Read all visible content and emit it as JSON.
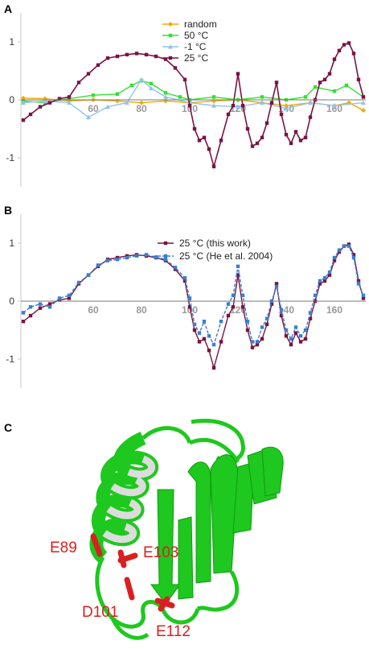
{
  "panels": {
    "a": {
      "label": "A"
    },
    "b": {
      "label": "B"
    },
    "c": {
      "label": "C"
    }
  },
  "chart_data": [
    {
      "type": "line",
      "panel": "A",
      "title": "",
      "xlabel": "",
      "ylabel": "",
      "xlim": [
        30,
        173
      ],
      "ylim": [
        -1.5,
        1.5
      ],
      "x_ticks": [
        60,
        80,
        100,
        120,
        140,
        160
      ],
      "y_ticks": [
        1,
        0,
        -1
      ],
      "legend_position": "top-center",
      "series": [
        {
          "name": "random",
          "color": "#f2a900",
          "marker": "diamond",
          "x": [
            31,
            40,
            50,
            60,
            70,
            80,
            90,
            100,
            110,
            120,
            130,
            140,
            150,
            160,
            166,
            172
          ],
          "y": [
            0.03,
            0.02,
            -0.02,
            0.0,
            -0.02,
            -0.05,
            -0.02,
            -0.05,
            -0.02,
            0.0,
            -0.05,
            -0.1,
            -0.05,
            -0.1,
            -0.05,
            -0.18
          ]
        },
        {
          "name": "50 °C",
          "color": "#33e033",
          "marker": "square",
          "x": [
            31,
            40,
            50,
            60,
            70,
            76,
            80,
            84,
            90,
            96,
            100,
            110,
            120,
            130,
            140,
            148,
            152,
            160,
            165,
            172
          ],
          "y": [
            -0.02,
            -0.05,
            0.02,
            0.08,
            0.1,
            0.25,
            0.33,
            0.28,
            0.12,
            0.05,
            0.0,
            0.05,
            0.0,
            0.05,
            0.0,
            0.05,
            0.22,
            0.15,
            0.25,
            0.05
          ]
        },
        {
          "name": "-1 °C",
          "color": "#8fc3ef",
          "marker": "triangle",
          "x": [
            31,
            40,
            50,
            58,
            66,
            74,
            80,
            84,
            90,
            100,
            110,
            120,
            130,
            140,
            150,
            160,
            172
          ],
          "y": [
            -0.05,
            -0.02,
            -0.05,
            -0.3,
            -0.12,
            -0.05,
            0.35,
            0.2,
            0.05,
            -0.05,
            -0.1,
            -0.12,
            -0.05,
            -0.15,
            -0.05,
            -0.1,
            -0.05
          ]
        },
        {
          "name": "25 °C",
          "color": "#7a1342",
          "marker": "square",
          "x": [
            31,
            34,
            38,
            42,
            46,
            50,
            54,
            58,
            62,
            66,
            70,
            74,
            78,
            82,
            86,
            90,
            94,
            98,
            100,
            102,
            104,
            106,
            108,
            110,
            113,
            116,
            118,
            120,
            122,
            124,
            126,
            128,
            130,
            132,
            134,
            136,
            138,
            140,
            142,
            144,
            146,
            148,
            150,
            152,
            154,
            156,
            158,
            160,
            162,
            164,
            166,
            168,
            170,
            172
          ],
          "y": [
            -0.35,
            -0.25,
            -0.12,
            -0.05,
            0.02,
            0.05,
            0.3,
            0.45,
            0.6,
            0.72,
            0.75,
            0.78,
            0.8,
            0.78,
            0.75,
            0.7,
            0.55,
            0.35,
            -0.1,
            -0.5,
            -0.7,
            -0.65,
            -0.85,
            -1.15,
            -0.7,
            -0.25,
            -0.1,
            0.45,
            -0.1,
            -0.5,
            -0.8,
            -0.75,
            -0.65,
            -0.4,
            -0.05,
            0.3,
            -0.25,
            -0.6,
            -0.75,
            -0.55,
            -0.7,
            -0.65,
            -0.3,
            0.0,
            0.3,
            0.35,
            0.45,
            0.7,
            0.85,
            0.95,
            0.98,
            0.8,
            0.35,
            0.05
          ]
        }
      ]
    },
    {
      "type": "line",
      "panel": "B",
      "title": "",
      "xlabel": "",
      "ylabel": "",
      "xlim": [
        30,
        173
      ],
      "ylim": [
        -1.5,
        1.5
      ],
      "x_ticks": [
        60,
        80,
        100,
        120,
        140,
        160
      ],
      "y_ticks": [
        1,
        0,
        -1
      ],
      "legend_position": "top-center",
      "series": [
        {
          "name": "25 °C (this work)",
          "color": "#7a1342",
          "marker": "square",
          "x": [
            31,
            34,
            38,
            42,
            46,
            50,
            54,
            58,
            62,
            66,
            70,
            74,
            78,
            82,
            86,
            90,
            94,
            98,
            100,
            102,
            104,
            106,
            108,
            110,
            113,
            116,
            118,
            120,
            122,
            124,
            126,
            128,
            130,
            132,
            134,
            136,
            138,
            140,
            142,
            144,
            146,
            148,
            150,
            152,
            154,
            156,
            158,
            160,
            162,
            164,
            166,
            168,
            170,
            172
          ],
          "y": [
            -0.35,
            -0.25,
            -0.12,
            -0.05,
            0.02,
            0.05,
            0.3,
            0.45,
            0.6,
            0.72,
            0.75,
            0.78,
            0.8,
            0.78,
            0.75,
            0.7,
            0.55,
            0.35,
            -0.1,
            -0.5,
            -0.7,
            -0.65,
            -0.85,
            -1.15,
            -0.7,
            -0.25,
            -0.1,
            0.45,
            -0.1,
            -0.5,
            -0.8,
            -0.75,
            -0.65,
            -0.4,
            -0.05,
            0.3,
            -0.25,
            -0.6,
            -0.75,
            -0.55,
            -0.7,
            -0.65,
            -0.3,
            0.0,
            0.3,
            0.35,
            0.45,
            0.7,
            0.85,
            0.95,
            0.98,
            0.8,
            0.35,
            0.05
          ]
        },
        {
          "name": "25 °C (He et al. 2004)",
          "color": "#3a7fd0",
          "marker": "square",
          "x": [
            31,
            34,
            38,
            42,
            46,
            50,
            54,
            58,
            62,
            66,
            70,
            74,
            78,
            82,
            86,
            90,
            94,
            98,
            100,
            102,
            104,
            106,
            108,
            110,
            113,
            116,
            118,
            120,
            122,
            124,
            126,
            128,
            130,
            132,
            134,
            136,
            138,
            140,
            142,
            144,
            146,
            148,
            150,
            152,
            154,
            156,
            158,
            160,
            162,
            164,
            166,
            168,
            170,
            172
          ],
          "y": [
            -0.2,
            -0.1,
            -0.05,
            -0.1,
            0.05,
            0.1,
            0.32,
            0.45,
            0.62,
            0.7,
            0.72,
            0.75,
            0.78,
            0.8,
            0.76,
            0.72,
            0.58,
            0.4,
            0.05,
            -0.4,
            -0.55,
            -0.35,
            -0.6,
            -0.75,
            -0.35,
            -0.05,
            0.1,
            0.6,
            0.1,
            -0.35,
            -0.7,
            -0.7,
            -0.45,
            -0.3,
            0.0,
            0.25,
            -0.15,
            -0.5,
            -0.65,
            -0.45,
            -0.6,
            -0.5,
            -0.2,
            0.1,
            0.35,
            0.4,
            0.5,
            0.75,
            0.88,
            0.95,
            0.95,
            0.75,
            0.3,
            0.1
          ]
        }
      ]
    }
  ],
  "structure": {
    "residue_labels": [
      "E89",
      "E103",
      "D101",
      "E112"
    ],
    "colors": {
      "protein": "#1ec81e",
      "helix_inner": "#dcdcdc",
      "residues": "#d92020"
    }
  }
}
